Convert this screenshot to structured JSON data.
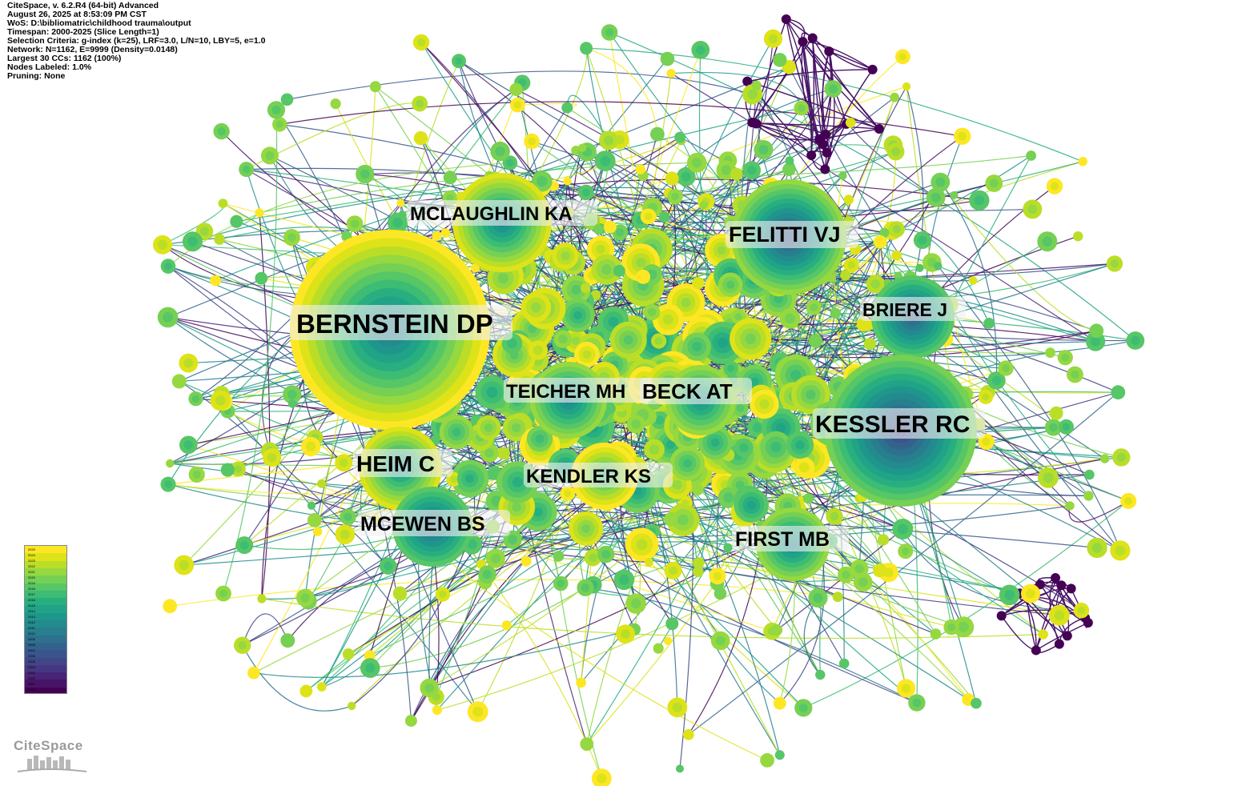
{
  "info": {
    "lines": [
      "CiteSpace, v. 6.2.R4 (64-bit) Advanced",
      "August 26, 2025 at 8:53:09 PM CST",
      "WoS: D:\\bibliomatric\\childhood trauma\\output",
      "Timespan: 2000-2025 (Slice Length=1)",
      "Selection Criteria: g-index (k=25), LRF=3.0, L/N=10, LBY=5, e=1.0",
      "Network: N=1162, E=9999 (Density=0.0148)",
      "Largest 30 CCs: 1162 (100%)",
      "Nodes Labeled: 1.0%",
      "Pruning: None"
    ]
  },
  "logo": {
    "text": "CiteSpace"
  },
  "legend": {
    "years": [
      "2025",
      "2024",
      "2023",
      "2022",
      "2021",
      "2020",
      "2019",
      "2018",
      "2017",
      "2016",
      "2015",
      "2014",
      "2013",
      "2012",
      "2011",
      "2010",
      "2009",
      "2008",
      "2007",
      "2006",
      "2005",
      "2004",
      "2003",
      "2002",
      "2001",
      "2000"
    ],
    "colors": [
      "#fde725",
      "#dde318",
      "#bade28",
      "#95d840",
      "#75d054",
      "#56c667",
      "#3dbc74",
      "#29af7f",
      "#20a386",
      "#1f968b",
      "#238a8d",
      "#277f8e",
      "#2d718e",
      "#33638d",
      "#39558c",
      "#404688",
      "#453781",
      "#482576",
      "#481467",
      "#440154"
    ]
  },
  "labels": [
    {
      "id": "bernstein",
      "text": "BERNSTEIN DP"
    },
    {
      "id": "mclaughlin",
      "text": "MCLAUGHLIN KA"
    },
    {
      "id": "felitti",
      "text": "FELITTI VJ"
    },
    {
      "id": "briere",
      "text": "BRIERE J"
    },
    {
      "id": "teicher",
      "text": "TEICHER MH"
    },
    {
      "id": "beck",
      "text": "BECK AT"
    },
    {
      "id": "kessler",
      "text": "KESSLER RC"
    },
    {
      "id": "heim",
      "text": "HEIM C"
    },
    {
      "id": "kendler",
      "text": "KENDLER KS"
    },
    {
      "id": "mcewen",
      "text": "MCEWEN BS"
    },
    {
      "id": "first",
      "text": "FIRST MB"
    }
  ]
}
